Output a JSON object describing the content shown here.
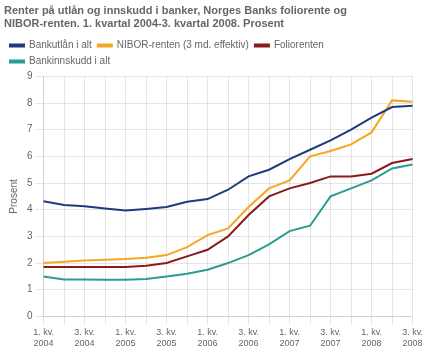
{
  "chart_data": {
    "type": "line",
    "title": "Renter på utlån og innskudd i banker, Norges Banks foliorente og\nNIBOR-renten. 1. kvartal 2004-3. kvartal 2008. Prosent",
    "ylabel": "Prosent",
    "categories": [
      "1. kv.\n2004",
      null,
      "3. kv.\n2004",
      null,
      "1. kv.\n2005",
      null,
      "3. kv.\n2005",
      null,
      "1. kv.\n2006",
      null,
      "3. kv.\n2006",
      null,
      "1. kv.\n2007",
      null,
      "3. kv.\n2007",
      null,
      "1. kv.\n2008",
      null,
      "3. kv.\n2008"
    ],
    "series": [
      {
        "name": "Bankutlån i alt",
        "color": "#1f3a7d",
        "values": [
          4.32,
          4.18,
          4.13,
          4.05,
          3.97,
          4.03,
          4.1,
          4.3,
          4.4,
          4.75,
          5.25,
          5.5,
          5.9,
          6.25,
          6.6,
          7.0,
          7.45,
          7.85,
          7.9
        ]
      },
      {
        "name": "NIBOR-renten (3 md. effektiv)",
        "color": "#f5a623",
        "values": [
          2.0,
          2.05,
          2.1,
          2.12,
          2.15,
          2.2,
          2.3,
          2.6,
          3.05,
          3.3,
          4.1,
          4.8,
          5.1,
          6.0,
          6.2,
          6.45,
          6.9,
          8.1,
          8.05
        ]
      },
      {
        "name": "Foliorenten",
        "color": "#8b1a1a",
        "values": [
          1.85,
          1.85,
          1.85,
          1.85,
          1.85,
          1.9,
          2.0,
          2.25,
          2.5,
          3.0,
          3.8,
          4.5,
          4.8,
          5.0,
          5.25,
          5.25,
          5.35,
          5.75,
          5.9
        ]
      },
      {
        "name": "Bankinnskudd i alt",
        "color": "#2a9d8f",
        "values": [
          1.5,
          1.38,
          1.38,
          1.37,
          1.37,
          1.4,
          1.5,
          1.6,
          1.75,
          2.0,
          2.3,
          2.7,
          3.2,
          3.4,
          4.5,
          4.8,
          5.1,
          5.55,
          5.7
        ]
      }
    ],
    "ylim": [
      0,
      9
    ],
    "yticks": [
      0,
      1,
      2,
      3,
      4,
      5,
      6,
      7,
      8,
      9
    ],
    "grid": true,
    "legend": "upper left"
  }
}
